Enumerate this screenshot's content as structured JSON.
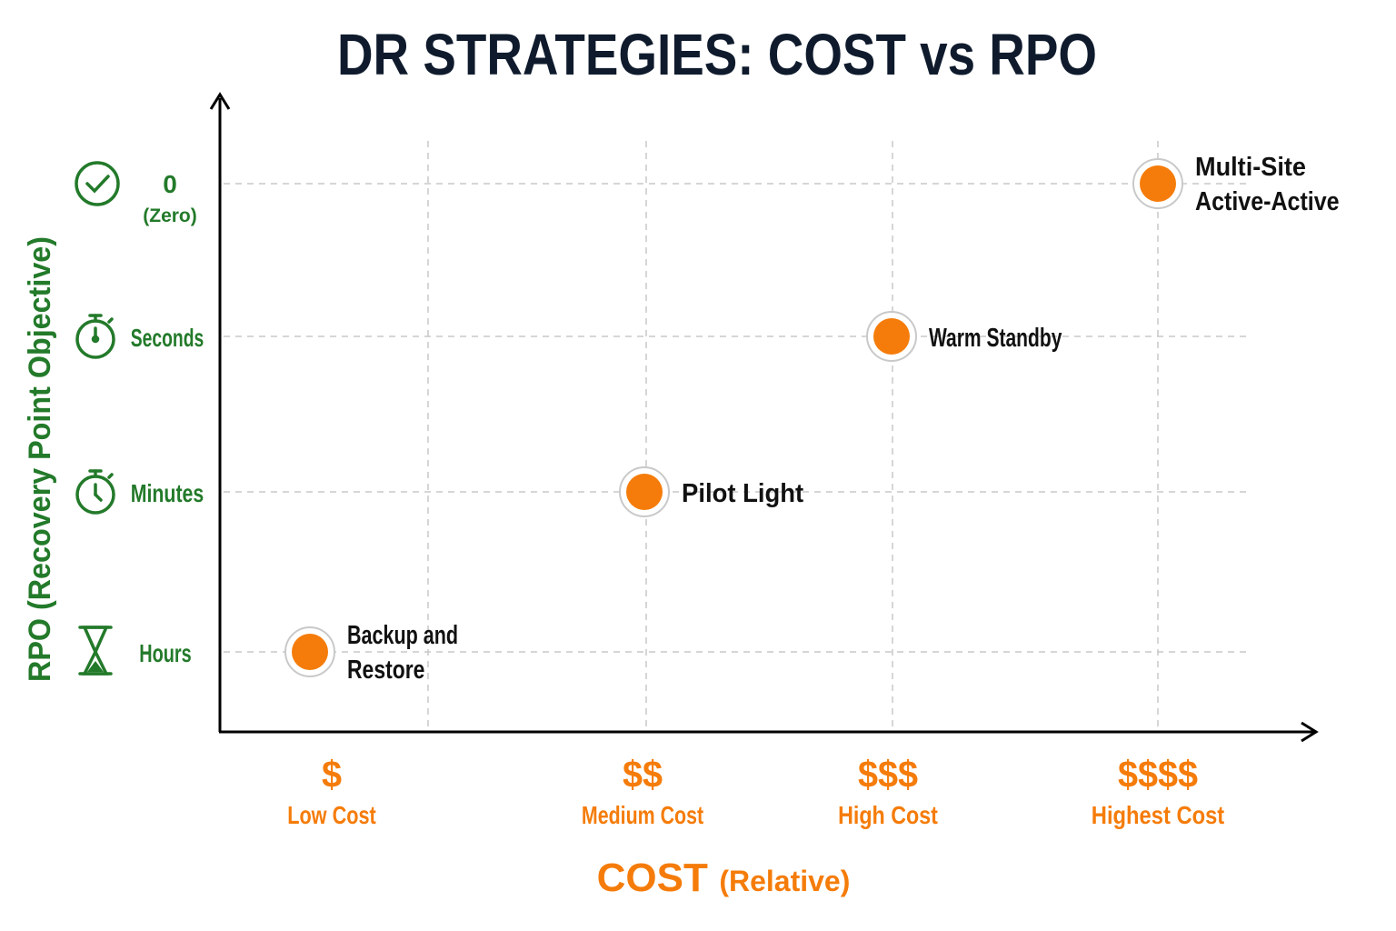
{
  "chart_data": {
    "type": "scatter",
    "title": "DR STRATEGIES: COST vs RPO",
    "xlabel": "COST",
    "xlabel_suffix": "(Relative)",
    "ylabel": "RPO (Recovery Point Objective)",
    "grid": true,
    "x_ticks": [
      {
        "symbol": "$",
        "label": "Low Cost"
      },
      {
        "symbol": "$$",
        "label": "Medium Cost"
      },
      {
        "symbol": "$$$",
        "label": "High Cost"
      },
      {
        "symbol": "$$$$",
        "label": "Highest Cost"
      }
    ],
    "y_ticks": [
      {
        "label": "Hours",
        "icon": "hourglass-icon"
      },
      {
        "label": "Minutes",
        "icon": "stopwatch-icon"
      },
      {
        "label": "Seconds",
        "icon": "stopwatch-icon"
      },
      {
        "label": "0",
        "sublabel": "(Zero)",
        "icon": "check-circle-icon"
      }
    ],
    "points": [
      {
        "name": "Backup and Restore",
        "lines": [
          "Backup and",
          "Restore"
        ],
        "cost": "$",
        "rpo": "Hours"
      },
      {
        "name": "Pilot Light",
        "lines": [
          "Pilot Light"
        ],
        "cost": "$$",
        "rpo": "Minutes"
      },
      {
        "name": "Warm Standby",
        "lines": [
          "Warm Standby"
        ],
        "cost": "$$$",
        "rpo": "Seconds"
      },
      {
        "name": "Multi-Site Active-Active",
        "lines": [
          "Multi-Site",
          "Active-Active"
        ],
        "cost": "$$$$",
        "rpo": "0"
      }
    ],
    "colors": {
      "title": "#0f1b2d",
      "y_axis": "#237a2a",
      "x_axis": "#f57c0a",
      "point": "#f57c0a"
    }
  }
}
